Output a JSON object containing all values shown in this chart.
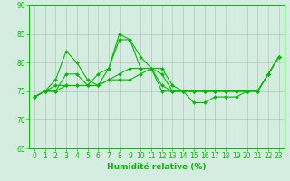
{
  "line1": [
    74,
    75,
    77,
    82,
    80,
    77,
    76,
    79,
    85,
    84,
    81,
    79,
    78,
    75,
    75,
    73,
    73,
    74,
    74,
    74,
    75,
    75,
    78,
    81
  ],
  "line2": [
    74,
    75,
    75,
    78,
    78,
    76,
    78,
    79,
    84,
    84,
    79,
    79,
    79,
    76,
    75,
    75,
    75,
    75,
    75,
    75,
    75,
    75,
    78,
    81
  ],
  "line3": [
    74,
    75,
    76,
    76,
    76,
    76,
    76,
    77,
    78,
    79,
    79,
    79,
    76,
    75,
    75,
    75,
    75,
    75,
    75,
    75,
    75,
    75,
    78,
    81
  ],
  "line4": [
    74,
    75,
    75,
    76,
    76,
    76,
    76,
    77,
    77,
    77,
    78,
    79,
    75,
    75,
    75,
    75,
    75,
    75,
    75,
    75,
    75,
    75,
    78,
    81
  ],
  "xlabel": "Humidité relative (%)",
  "ylabel": "",
  "xlim": [
    -0.5,
    23.5
  ],
  "ylim": [
    65,
    90
  ],
  "yticks": [
    65,
    70,
    75,
    80,
    85,
    90
  ],
  "xticks": [
    0,
    1,
    2,
    3,
    4,
    5,
    6,
    7,
    8,
    9,
    10,
    11,
    12,
    13,
    14,
    15,
    16,
    17,
    18,
    19,
    20,
    21,
    22,
    23
  ],
  "line_color": "#00bb00",
  "bg_color": "#d5ede0",
  "grid_color": "#b0c8b8",
  "markersize": 2,
  "linewidth": 0.8,
  "tick_fontsize": 5.5,
  "xlabel_fontsize": 6.5
}
